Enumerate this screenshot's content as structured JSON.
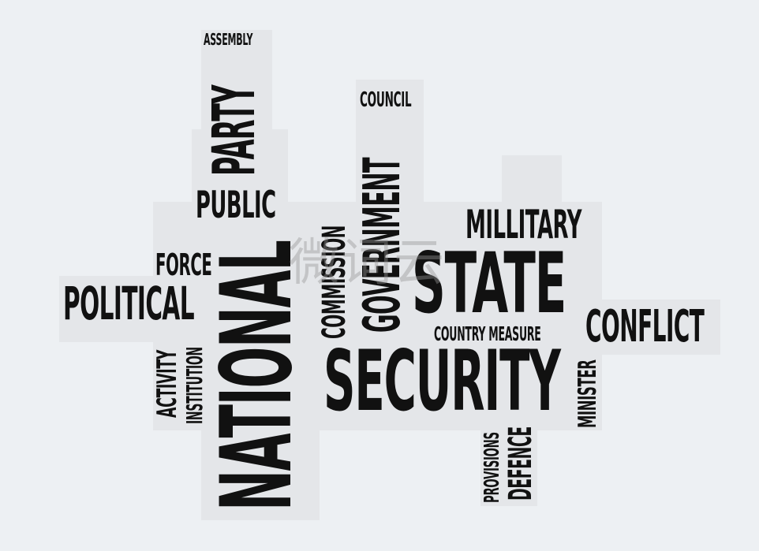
{
  "words": {
    "assembly": "ASSEMBLY",
    "party": "PARTY",
    "public": "PUBLIC",
    "force": "FORCE",
    "political": "POLITICAL",
    "activity": "ACTIVITY",
    "institution": "INSTITUTION",
    "national": "NATIONAL",
    "commission": "COMMISSION",
    "council": "COUNCIL",
    "government": "GOVERNMENT",
    "millitary": "MILLITARY",
    "state": "STATE",
    "country_measure": "COUNTRY MEASURE",
    "conflict": "CONFLICT",
    "security": "SECURITY",
    "minister": "MINISTER",
    "provisions": "PROVISIONS",
    "defence": "DEFENCE"
  },
  "watermark": "微词云",
  "colors": {
    "background": "#edf0f3",
    "word_blocks": "#e4e6e9",
    "text": "#111111"
  }
}
